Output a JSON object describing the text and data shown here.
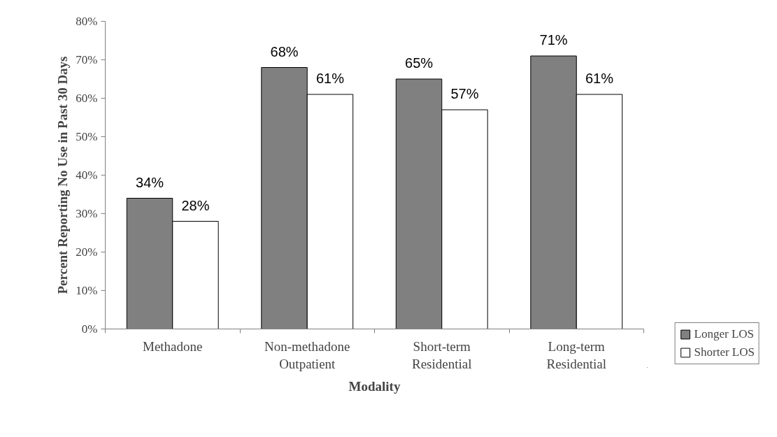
{
  "chart_data": {
    "type": "bar",
    "xlabel": "Modality",
    "ylabel": "Percent Reporting No Use in Past 30 Days",
    "categories": [
      "Methadone",
      "Non-methadone\nOutpatient",
      "Short-term\nResidential",
      "Long-term\nResidential"
    ],
    "series": [
      {
        "name": "Longer LOS",
        "color": "#808080",
        "values": [
          34,
          68,
          65,
          71
        ]
      },
      {
        "name": "Shorter LOS",
        "color": "#ffffff",
        "values": [
          28,
          61,
          57,
          61
        ]
      }
    ],
    "ylim": [
      0,
      80
    ],
    "yticks": [
      {
        "value": 0,
        "label": "0%"
      },
      {
        "value": 10,
        "label": "10%"
      },
      {
        "value": 20,
        "label": "20%"
      },
      {
        "value": 30,
        "label": "30%"
      },
      {
        "value": 40,
        "label": "40%"
      },
      {
        "value": 50,
        "label": "50%"
      },
      {
        "value": 60,
        "label": "60%"
      },
      {
        "value": 70,
        "label": "70%"
      },
      {
        "value": 80,
        "label": "80%"
      }
    ],
    "value_labels": [
      [
        "34%",
        "68%",
        "65%",
        "71%"
      ],
      [
        "28%",
        "61%",
        "57%",
        "61%"
      ]
    ],
    "grid": false,
    "legend": "bottom right"
  }
}
